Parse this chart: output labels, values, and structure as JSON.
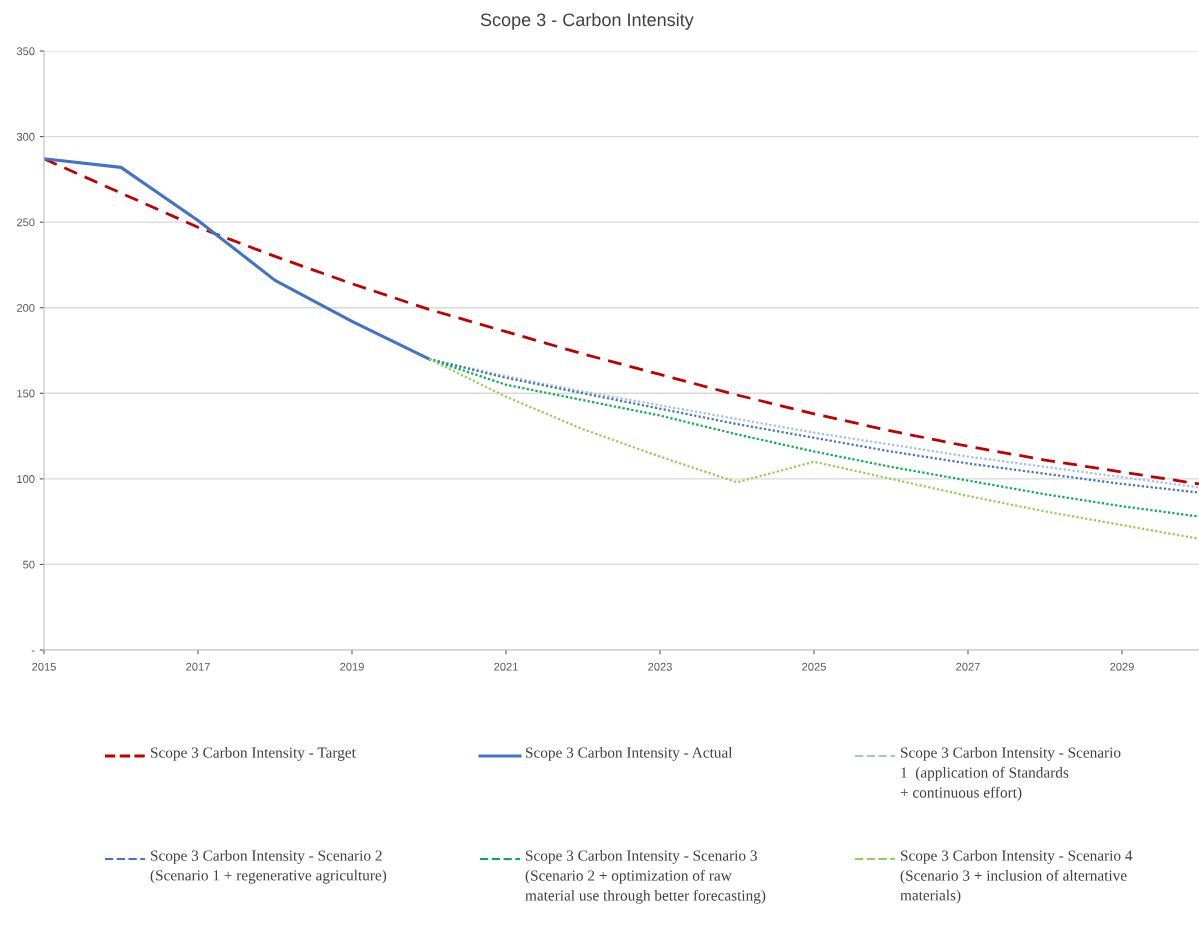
{
  "chart_data": {
    "type": "line",
    "title": "Scope 3 - Carbon Intensity",
    "x": [
      2015,
      2016,
      2017,
      2018,
      2019,
      2020,
      2021,
      2022,
      2023,
      2024,
      2025,
      2026,
      2027,
      2028,
      2029,
      2030
    ],
    "series": [
      {
        "name": "Scope 3 Carbon Intensity - Target",
        "color": "#c00000",
        "line_style": "dashed",
        "values": [
          287,
          267,
          247,
          230,
          214,
          199,
          186,
          173,
          161,
          149,
          138,
          128,
          119,
          111,
          104,
          97
        ]
      },
      {
        "name": "Scope 3 Carbon Intensity - Actual",
        "color": "#4472c4",
        "line_style": "solid",
        "values": [
          287,
          282,
          251,
          216,
          192,
          170,
          null,
          null,
          null,
          null,
          null,
          null,
          null,
          null,
          null,
          null
        ]
      },
      {
        "name": "Scope 3 Carbon Intensity - Scenario\n1  (application of Standards\n+ continuous effort)",
        "color": "#9dc3e6",
        "line_style": "dotted",
        "values": [
          null,
          null,
          null,
          null,
          null,
          170,
          160,
          151,
          143,
          135,
          127,
          120,
          113,
          107,
          101,
          95
        ]
      },
      {
        "name": "Scope 3 Carbon Intensity - Scenario 2\n(Scenario 1 + regenerative agriculture)",
        "color": "#4472c4",
        "line_style": "dotted",
        "values": [
          null,
          null,
          null,
          null,
          null,
          170,
          159,
          150,
          141,
          132,
          124,
          116,
          109,
          103,
          97,
          92
        ]
      },
      {
        "name": "Scope 3 Carbon Intensity - Scenario 3\n(Scenario 2 + optimization of raw\nmaterial use through better forecasting)",
        "color": "#00b050",
        "line_style": "dotted",
        "values": [
          null,
          null,
          null,
          null,
          null,
          170,
          155,
          146,
          137,
          126,
          116,
          107,
          99,
          91,
          84,
          78
        ]
      },
      {
        "name": "Scope 3 Carbon Intensity - Scenario 4\n(Scenario 3 + inclusion of alternative\nmaterials)",
        "color": "#92d050",
        "line_style": "dotted",
        "values": [
          null,
          null,
          null,
          null,
          null,
          170,
          148,
          129,
          113,
          98,
          110,
          100,
          90,
          81,
          73,
          65
        ]
      }
    ],
    "xlim": [
      2015,
      2030
    ],
    "xticks": [
      2015,
      2017,
      2019,
      2021,
      2023,
      2025,
      2027,
      2029
    ],
    "ylim": [
      0,
      350
    ],
    "yticks": [
      {
        "value": 0,
        "label": "-"
      },
      50,
      100,
      150,
      200,
      250,
      300,
      350
    ],
    "grid": "y",
    "legend": "bottom"
  }
}
